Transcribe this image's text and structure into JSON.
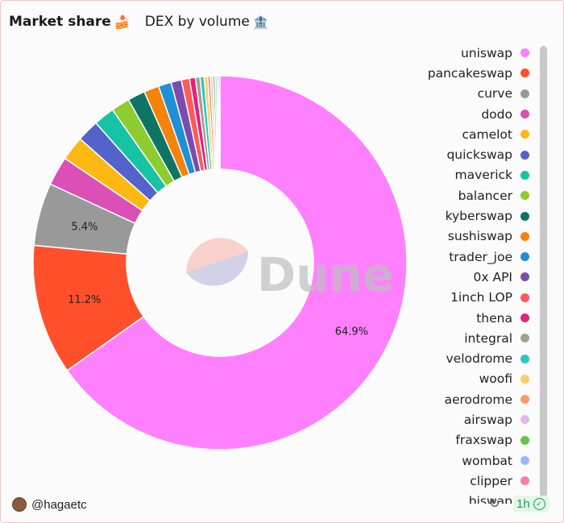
{
  "header": {
    "title": "Market share",
    "title_emoji": "🍰",
    "subtitle": "DEX by volume",
    "subtitle_emoji": "🏦"
  },
  "watermark": "Dune",
  "footer": {
    "author": "@hagaetc",
    "time_badge": "1h"
  },
  "chart_data": {
    "type": "pie",
    "series": [
      {
        "name": "uniswap",
        "value": 64.9,
        "color": "#ff80ff"
      },
      {
        "name": "pancakeswap",
        "value": 11.2,
        "color": "#ff4f2b"
      },
      {
        "name": "curve",
        "value": 5.4,
        "color": "#999999"
      },
      {
        "name": "dodo",
        "value": 2.5,
        "color": "#dc4fb6"
      },
      {
        "name": "camelot",
        "value": 2.1,
        "color": "#fdb813"
      },
      {
        "name": "quickswap",
        "value": 1.9,
        "color": "#5363c9"
      },
      {
        "name": "maverick",
        "value": 1.8,
        "color": "#17c3a5"
      },
      {
        "name": "balancer",
        "value": 1.6,
        "color": "#8ccc2e"
      },
      {
        "name": "kyberswap",
        "value": 1.5,
        "color": "#0e7565"
      },
      {
        "name": "sushiswap",
        "value": 1.3,
        "color": "#f5820d"
      },
      {
        "name": "trader_joe",
        "value": 1.1,
        "color": "#1f8fd6"
      },
      {
        "name": "0x API",
        "value": 0.9,
        "color": "#7a4cb0"
      },
      {
        "name": "1inch LOP",
        "value": 0.7,
        "color": "#ff5a5a"
      },
      {
        "name": "thena",
        "value": 0.5,
        "color": "#e0237e"
      },
      {
        "name": "integral",
        "value": 0.4,
        "color": "#a3a38c"
      },
      {
        "name": "velodrome",
        "value": 0.35,
        "color": "#2ec4c4"
      },
      {
        "name": "woofi",
        "value": 0.3,
        "color": "#ffcc66"
      },
      {
        "name": "aerodrome",
        "value": 0.25,
        "color": "#ff9966"
      },
      {
        "name": "airswap",
        "value": 0.2,
        "color": "#e4b3f0"
      },
      {
        "name": "fraxswap",
        "value": 0.18,
        "color": "#66c24a"
      },
      {
        "name": "wombat",
        "value": 0.16,
        "color": "#99b8ff"
      },
      {
        "name": "clipper",
        "value": 0.14,
        "color": "#ff7aa8"
      },
      {
        "name": "biswap",
        "value": 0.12,
        "color": "#555555"
      }
    ],
    "data_labels": [
      {
        "series": "uniswap",
        "text": "64.9%"
      },
      {
        "series": "pancakeswap",
        "text": "11.2%"
      },
      {
        "series": "curve",
        "text": "5.4%"
      }
    ],
    "legend_position": "right"
  }
}
